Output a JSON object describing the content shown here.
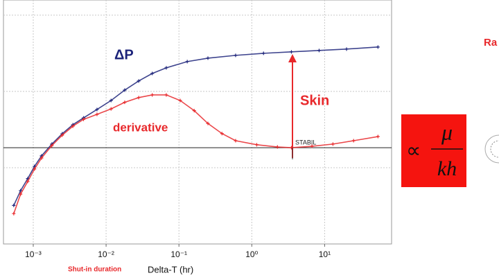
{
  "chart_data": {
    "type": "scatter-line",
    "log_x": true,
    "log_y": true,
    "xlim": [
      0.00039,
      83
    ],
    "ylim": [
      0.1,
      158
    ],
    "xticks": [
      {
        "value": 0.001,
        "label": "10⁻³"
      },
      {
        "value": 0.01,
        "label": "10⁻²"
      },
      {
        "value": 0.1,
        "label": "10⁻¹"
      },
      {
        "value": 1,
        "label": "10⁰"
      },
      {
        "value": 10,
        "label": "10¹"
      }
    ],
    "yticks": [
      1,
      10,
      100
    ],
    "grid": true,
    "x_label": "Delta-T (hr)",
    "x_note": "Shut-in duration",
    "stabilization_level": 1.83,
    "stabilization_label": "STABIL",
    "skin_label": "Skin",
    "series": [
      {
        "name": "ΔP",
        "color": "#1c237a",
        "x": [
          0.00054,
          0.00067,
          0.00084,
          0.00104,
          0.0013,
          0.0018,
          0.0025,
          0.0035,
          0.0049,
          0.0075,
          0.0117,
          0.018,
          0.028,
          0.043,
          0.067,
          0.13,
          0.25,
          0.6,
          1.45,
          3.5,
          8.4,
          20,
          54
        ],
        "values": [
          0.32,
          0.5,
          0.72,
          1.04,
          1.43,
          2.04,
          2.79,
          3.66,
          4.5,
          5.8,
          7.6,
          10.4,
          13.7,
          17.2,
          20.4,
          24.6,
          27.3,
          29.7,
          31.6,
          33,
          34.4,
          35.9,
          38.2
        ]
      },
      {
        "name": "derivative",
        "color": "#e8282b",
        "x": [
          0.00054,
          0.00067,
          0.00084,
          0.00104,
          0.0013,
          0.0018,
          0.0025,
          0.0035,
          0.0049,
          0.0075,
          0.0117,
          0.018,
          0.028,
          0.043,
          0.067,
          0.104,
          0.162,
          0.25,
          0.39,
          0.6,
          1.17,
          2.25,
          3.5,
          6.7,
          13,
          25,
          54
        ],
        "values": [
          0.25,
          0.45,
          0.66,
          0.96,
          1.34,
          1.95,
          2.67,
          3.5,
          4.3,
          5.0,
          5.9,
          7.2,
          8.3,
          9.0,
          9.0,
          7.6,
          5.6,
          3.8,
          2.8,
          2.26,
          2.0,
          1.87,
          1.83,
          1.91,
          2.04,
          2.26,
          2.56
        ]
      }
    ]
  },
  "slide": {
    "side_label": "Ra",
    "formula": {
      "symbol": "∝",
      "numerator": "μ",
      "denominator": "kh"
    }
  }
}
